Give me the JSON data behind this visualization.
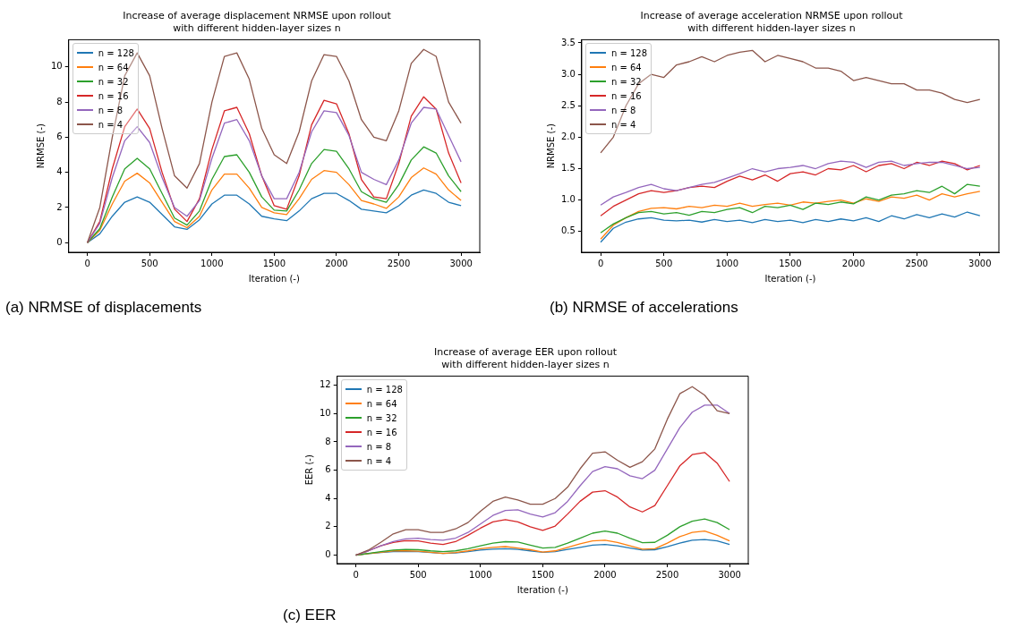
{
  "chart_data": [
    {
      "type": "line",
      "title": "Increase of average displacement NRMSE upon rollout\nwith different hidden-layer sizes n",
      "xlabel": "Iteration (-)",
      "ylabel": "NRMSE (-)",
      "annotations": [
        "(a) NRMSE of displacements"
      ],
      "x": [
        0,
        100,
        200,
        300,
        400,
        500,
        600,
        700,
        800,
        900,
        1000,
        1100,
        1200,
        1300,
        1400,
        1500,
        1600,
        1700,
        1800,
        1900,
        2000,
        2100,
        2200,
        2300,
        2400,
        2500,
        2600,
        2700,
        2800,
        2900,
        3000
      ],
      "xlim": [
        -150,
        3150
      ],
      "xticks": [
        0,
        500,
        1000,
        1500,
        2000,
        2500,
        3000
      ],
      "ylim": [
        -0.55,
        11.55
      ],
      "yticks": [
        0,
        2,
        4,
        6,
        8,
        10
      ],
      "legend": "top left",
      "marker": "none",
      "line_style": "solid",
      "grid": false,
      "series": [
        {
          "name": "n = 128",
          "color": "#1f77b4",
          "values": [
            0,
            0.5,
            1.5,
            2.3,
            2.6,
            2.3,
            1.6,
            0.9,
            0.75,
            1.3,
            2.2,
            2.7,
            2.7,
            2.2,
            1.5,
            1.35,
            1.25,
            1.8,
            2.5,
            2.8,
            2.8,
            2.4,
            1.9,
            1.8,
            1.7,
            2.1,
            2.7,
            3.0,
            2.8,
            2.3,
            2.1
          ]
        },
        {
          "name": "n = 64",
          "color": "#ff7f0e",
          "values": [
            0,
            0.7,
            2.2,
            3.5,
            3.95,
            3.4,
            2.3,
            1.2,
            0.85,
            1.5,
            3.0,
            3.9,
            3.9,
            3.1,
            2.0,
            1.7,
            1.6,
            2.5,
            3.6,
            4.1,
            4.0,
            3.3,
            2.4,
            2.2,
            1.95,
            2.6,
            3.7,
            4.25,
            3.9,
            3.0,
            2.4
          ]
        },
        {
          "name": "n = 32",
          "color": "#2ca02c",
          "values": [
            0,
            0.8,
            2.6,
            4.2,
            4.8,
            4.2,
            2.8,
            1.4,
            1.0,
            1.8,
            3.6,
            4.9,
            5.0,
            4.0,
            2.6,
            1.85,
            1.8,
            3.0,
            4.5,
            5.3,
            5.2,
            4.2,
            2.9,
            2.5,
            2.3,
            3.3,
            4.7,
            5.45,
            5.1,
            3.8,
            2.9
          ]
        },
        {
          "name": "n = 16",
          "color": "#d62728",
          "values": [
            0,
            1.2,
            4.2,
            6.6,
            7.6,
            6.5,
            4.0,
            1.9,
            1.2,
            2.5,
            5.3,
            7.5,
            7.7,
            6.2,
            3.8,
            2.1,
            1.9,
            3.8,
            6.7,
            8.1,
            7.9,
            6.2,
            3.6,
            2.6,
            2.5,
            4.5,
            7.2,
            8.3,
            7.6,
            5.1,
            3.4
          ]
        },
        {
          "name": "n = 8",
          "color": "#9467bd",
          "values": [
            0,
            1.1,
            3.7,
            5.8,
            6.6,
            5.7,
            3.7,
            2.0,
            1.5,
            2.4,
            4.8,
            6.8,
            7.0,
            5.8,
            3.8,
            2.5,
            2.5,
            4.0,
            6.3,
            7.5,
            7.4,
            6.1,
            4.0,
            3.6,
            3.3,
            4.7,
            6.8,
            7.7,
            7.6,
            6.1,
            4.6
          ]
        },
        {
          "name": "n = 4",
          "color": "#8c564b",
          "values": [
            0,
            2.0,
            6.0,
            9.5,
            10.8,
            9.5,
            6.5,
            3.8,
            3.1,
            4.5,
            8.0,
            10.6,
            10.8,
            9.3,
            6.5,
            5.0,
            4.5,
            6.3,
            9.2,
            10.7,
            10.6,
            9.2,
            7.0,
            6.0,
            5.8,
            7.5,
            10.2,
            11.0,
            10.6,
            8.0,
            6.8
          ]
        }
      ]
    },
    {
      "type": "line",
      "title": "Increase of average acceleration NRMSE upon rollout\nwith different hidden-layer sizes n",
      "xlabel": "Iteration (-)",
      "ylabel": "NRMSE (-)",
      "annotations": [
        "(b) NRMSE of accelerations"
      ],
      "x": [
        0,
        100,
        200,
        300,
        400,
        500,
        600,
        700,
        800,
        900,
        1000,
        1100,
        1200,
        1300,
        1400,
        1500,
        1600,
        1700,
        1800,
        1900,
        2000,
        2100,
        2200,
        2300,
        2400,
        2500,
        2600,
        2700,
        2800,
        2900,
        3000
      ],
      "xlim": [
        -150,
        3150
      ],
      "xticks": [
        0,
        500,
        1000,
        1500,
        2000,
        2500,
        3000
      ],
      "ylim": [
        0.17,
        3.55
      ],
      "yticks": [
        0.5,
        {
          "value": 1,
          "label": "1.0"
        },
        1.5,
        {
          "value": 2,
          "label": "2.0"
        },
        2.5,
        {
          "value": 3,
          "label": "3.0"
        },
        3.5
      ],
      "legend": "top left",
      "marker": "none",
      "line_style": "solid",
      "grid": false,
      "series": [
        {
          "name": "n = 128",
          "color": "#1f77b4",
          "values": [
            0.33,
            0.55,
            0.65,
            0.7,
            0.72,
            0.68,
            0.67,
            0.68,
            0.65,
            0.69,
            0.66,
            0.68,
            0.64,
            0.69,
            0.66,
            0.68,
            0.64,
            0.69,
            0.66,
            0.7,
            0.67,
            0.72,
            0.66,
            0.75,
            0.7,
            0.77,
            0.72,
            0.78,
            0.73,
            0.81,
            0.75
          ]
        },
        {
          "name": "n = 64",
          "color": "#ff7f0e",
          "values": [
            0.38,
            0.6,
            0.72,
            0.82,
            0.87,
            0.88,
            0.86,
            0.9,
            0.88,
            0.92,
            0.9,
            0.95,
            0.9,
            0.93,
            0.95,
            0.92,
            0.97,
            0.95,
            0.98,
            1.0,
            0.95,
            1.02,
            0.98,
            1.05,
            1.03,
            1.08,
            1.0,
            1.1,
            1.05,
            1.1,
            1.14
          ]
        },
        {
          "name": "n = 32",
          "color": "#2ca02c",
          "values": [
            0.48,
            0.62,
            0.72,
            0.8,
            0.82,
            0.78,
            0.8,
            0.76,
            0.82,
            0.8,
            0.85,
            0.88,
            0.8,
            0.9,
            0.88,
            0.92,
            0.85,
            0.95,
            0.93,
            0.97,
            0.94,
            1.05,
            1.0,
            1.08,
            1.1,
            1.15,
            1.12,
            1.22,
            1.1,
            1.25,
            1.22
          ]
        },
        {
          "name": "n = 16",
          "color": "#d62728",
          "values": [
            0.75,
            0.9,
            1.0,
            1.1,
            1.15,
            1.12,
            1.15,
            1.2,
            1.22,
            1.2,
            1.3,
            1.38,
            1.32,
            1.4,
            1.3,
            1.42,
            1.45,
            1.4,
            1.5,
            1.48,
            1.55,
            1.45,
            1.55,
            1.58,
            1.5,
            1.6,
            1.55,
            1.62,
            1.58,
            1.48,
            1.55
          ]
        },
        {
          "name": "n = 8",
          "color": "#9467bd",
          "values": [
            0.92,
            1.05,
            1.12,
            1.2,
            1.25,
            1.18,
            1.15,
            1.2,
            1.25,
            1.28,
            1.35,
            1.42,
            1.5,
            1.45,
            1.5,
            1.52,
            1.55,
            1.5,
            1.58,
            1.62,
            1.6,
            1.52,
            1.6,
            1.62,
            1.55,
            1.58,
            1.6,
            1.6,
            1.55,
            1.5,
            1.52
          ]
        },
        {
          "name": "n = 4",
          "color": "#8c564b",
          "values": [
            1.75,
            2.0,
            2.5,
            2.85,
            3.0,
            2.95,
            3.15,
            3.2,
            3.28,
            3.2,
            3.3,
            3.35,
            3.38,
            3.2,
            3.3,
            3.25,
            3.2,
            3.1,
            3.1,
            3.05,
            2.9,
            2.95,
            2.9,
            2.85,
            2.85,
            2.75,
            2.75,
            2.7,
            2.6,
            2.55,
            2.6
          ]
        }
      ]
    },
    {
      "type": "line",
      "title": "Increase of average EER upon rollout\nwith different hidden-layer sizes n",
      "xlabel": "Iteration (-)",
      "ylabel": "EER (-)",
      "annotations": [
        "(c) EER"
      ],
      "x": [
        0,
        100,
        200,
        300,
        400,
        500,
        600,
        700,
        800,
        900,
        1000,
        1100,
        1200,
        1300,
        1400,
        1500,
        1600,
        1700,
        1800,
        1900,
        2000,
        2100,
        2200,
        2300,
        2400,
        2500,
        2600,
        2700,
        2800,
        2900,
        3000
      ],
      "xlim": [
        -150,
        3150
      ],
      "xticks": [
        0,
        500,
        1000,
        1500,
        2000,
        2500,
        3000
      ],
      "ylim": [
        -0.6,
        12.65
      ],
      "yticks": [
        0,
        2,
        4,
        6,
        8,
        10,
        12
      ],
      "legend": "top left",
      "marker": "none",
      "line_style": "solid",
      "grid": false,
      "series": [
        {
          "name": "n = 128",
          "color": "#1f77b4",
          "values": [
            0,
            0.1,
            0.18,
            0.25,
            0.27,
            0.25,
            0.18,
            0.12,
            0.15,
            0.25,
            0.35,
            0.42,
            0.45,
            0.4,
            0.3,
            0.2,
            0.25,
            0.4,
            0.55,
            0.7,
            0.75,
            0.65,
            0.5,
            0.35,
            0.38,
            0.6,
            0.85,
            1.05,
            1.1,
            1.0,
            0.75
          ]
        },
        {
          "name": "n = 64",
          "color": "#ff7f0e",
          "values": [
            0,
            0.1,
            0.2,
            0.3,
            0.3,
            0.28,
            0.2,
            0.12,
            0.18,
            0.3,
            0.45,
            0.55,
            0.6,
            0.5,
            0.38,
            0.22,
            0.3,
            0.55,
            0.8,
            1.0,
            1.05,
            0.9,
            0.65,
            0.42,
            0.45,
            0.85,
            1.3,
            1.6,
            1.7,
            1.4,
            1.0
          ]
        },
        {
          "name": "n = 32",
          "color": "#2ca02c",
          "values": [
            0,
            0.12,
            0.25,
            0.35,
            0.4,
            0.38,
            0.3,
            0.25,
            0.3,
            0.45,
            0.65,
            0.85,
            0.95,
            0.92,
            0.7,
            0.5,
            0.55,
            0.85,
            1.2,
            1.55,
            1.7,
            1.55,
            1.2,
            0.88,
            0.9,
            1.4,
            2.0,
            2.4,
            2.55,
            2.3,
            1.8
          ]
        },
        {
          "name": "n = 16",
          "color": "#d62728",
          "values": [
            0,
            0.3,
            0.65,
            0.9,
            1.02,
            1.0,
            0.85,
            0.75,
            0.95,
            1.4,
            1.9,
            2.35,
            2.5,
            2.35,
            2.0,
            1.75,
            2.05,
            2.9,
            3.8,
            4.45,
            4.55,
            4.1,
            3.4,
            3.05,
            3.5,
            4.9,
            6.3,
            7.1,
            7.25,
            6.5,
            5.2
          ]
        },
        {
          "name": "n = 8",
          "color": "#9467bd",
          "values": [
            0,
            0.3,
            0.65,
            0.95,
            1.15,
            1.2,
            1.1,
            1.05,
            1.2,
            1.6,
            2.2,
            2.8,
            3.15,
            3.2,
            2.9,
            2.7,
            3.0,
            3.8,
            4.9,
            5.9,
            6.25,
            6.1,
            5.6,
            5.4,
            6.0,
            7.5,
            9.0,
            10.1,
            10.6,
            10.6,
            10.0
          ]
        },
        {
          "name": "n = 4",
          "color": "#8c564b",
          "values": [
            0,
            0.35,
            0.9,
            1.5,
            1.8,
            1.8,
            1.6,
            1.6,
            1.85,
            2.3,
            3.1,
            3.8,
            4.1,
            3.9,
            3.6,
            3.6,
            4.0,
            4.8,
            6.1,
            7.2,
            7.3,
            6.7,
            6.2,
            6.6,
            7.5,
            9.6,
            11.4,
            11.9,
            11.3,
            10.2,
            10.0
          ]
        }
      ]
    }
  ]
}
